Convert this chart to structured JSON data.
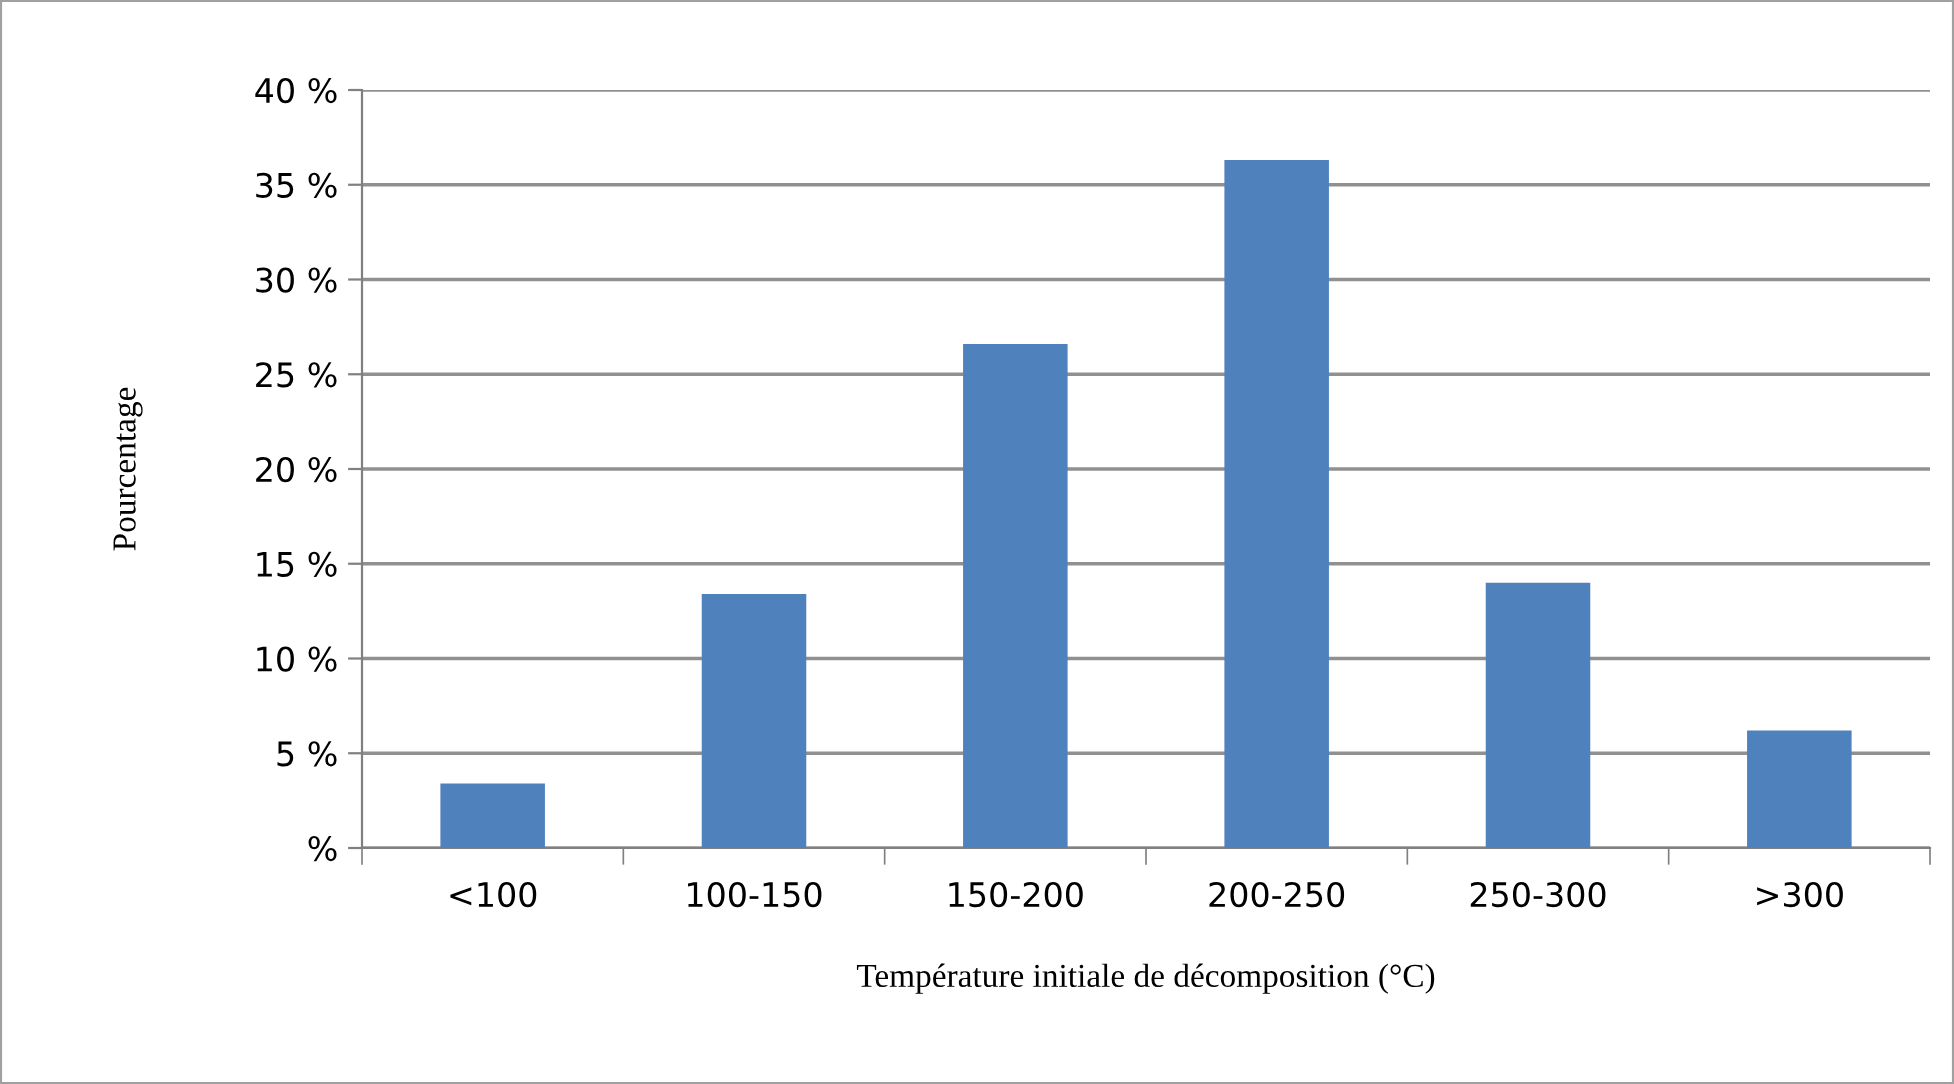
{
  "chart_data": {
    "type": "bar",
    "categories": [
      "<100",
      "100-150",
      "150-200",
      "200-250",
      "250-300",
      ">300"
    ],
    "values": [
      3.4,
      13.4,
      26.6,
      36.3,
      14.0,
      6.2
    ],
    "color": "#4f81bd",
    "xlabel": "Température initiale de décomposition (°C)",
    "ylabel": "Pourcentage",
    "ylim": [
      0,
      40
    ],
    "yticks": [
      {
        "value": 0,
        "label": "%"
      },
      {
        "value": 5,
        "label": "5 %"
      },
      {
        "value": 10,
        "label": "10 %"
      },
      {
        "value": 15,
        "label": "15 %"
      },
      {
        "value": 20,
        "label": "20 %"
      },
      {
        "value": 25,
        "label": "25 %"
      },
      {
        "value": 30,
        "label": "30 %"
      },
      {
        "value": 35,
        "label": "35 %"
      },
      {
        "value": 40,
        "label": "40 %"
      }
    ],
    "grid": "y",
    "legend": false
  }
}
